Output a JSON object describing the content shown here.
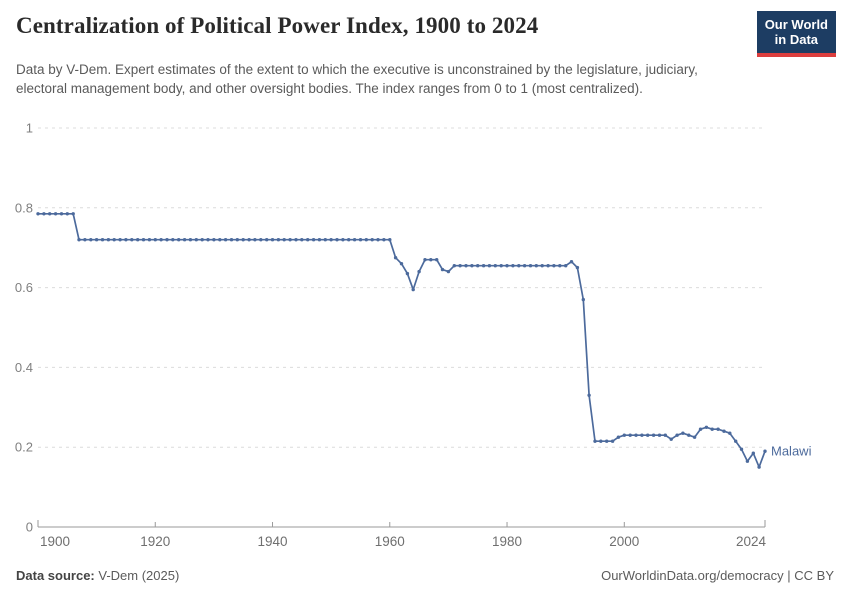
{
  "header": {
    "title": "Centralization of Political Power Index, 1900 to 2024",
    "subtitle": "Data by V-Dem. Expert estimates of the extent to which the executive is unconstrained by the legislature, judiciary, electoral management body, and other oversight bodies. The index ranges from 0 to 1 (most centralized).",
    "logo": {
      "line1": "Our World",
      "line2": "in Data",
      "bg_color": "#1d3d63",
      "accent_color": "#dc3e3e"
    }
  },
  "chart_data": {
    "type": "line",
    "title": "Centralization of Political Power Index, 1900 to 2024",
    "xlabel": "",
    "ylabel": "",
    "xlim": [
      1900,
      2024
    ],
    "ylim": [
      0,
      1
    ],
    "x_ticks": [
      1900,
      1920,
      1940,
      1960,
      1980,
      2000,
      2024
    ],
    "y_ticks": [
      0,
      0.2,
      0.4,
      0.6,
      0.8,
      1
    ],
    "grid": "horizontal-dashed",
    "legend_position": "end-of-line-label",
    "colors": {
      "grid": "#dcdcdc",
      "axis": "#9a9a9a",
      "tick_label": "#6f6f6f",
      "y_label": "#808080"
    },
    "series": [
      {
        "name": "Malawi",
        "color": "#4c6a9c",
        "points": [
          [
            1900,
            0.785
          ],
          [
            1901,
            0.785
          ],
          [
            1902,
            0.785
          ],
          [
            1903,
            0.785
          ],
          [
            1904,
            0.785
          ],
          [
            1905,
            0.785
          ],
          [
            1906,
            0.785
          ],
          [
            1907,
            0.72
          ],
          [
            1908,
            0.72
          ],
          [
            1909,
            0.72
          ],
          [
            1910,
            0.72
          ],
          [
            1911,
            0.72
          ],
          [
            1912,
            0.72
          ],
          [
            1913,
            0.72
          ],
          [
            1914,
            0.72
          ],
          [
            1915,
            0.72
          ],
          [
            1916,
            0.72
          ],
          [
            1917,
            0.72
          ],
          [
            1918,
            0.72
          ],
          [
            1919,
            0.72
          ],
          [
            1920,
            0.72
          ],
          [
            1921,
            0.72
          ],
          [
            1922,
            0.72
          ],
          [
            1923,
            0.72
          ],
          [
            1924,
            0.72
          ],
          [
            1925,
            0.72
          ],
          [
            1926,
            0.72
          ],
          [
            1927,
            0.72
          ],
          [
            1928,
            0.72
          ],
          [
            1929,
            0.72
          ],
          [
            1930,
            0.72
          ],
          [
            1931,
            0.72
          ],
          [
            1932,
            0.72
          ],
          [
            1933,
            0.72
          ],
          [
            1934,
            0.72
          ],
          [
            1935,
            0.72
          ],
          [
            1936,
            0.72
          ],
          [
            1937,
            0.72
          ],
          [
            1938,
            0.72
          ],
          [
            1939,
            0.72
          ],
          [
            1940,
            0.72
          ],
          [
            1941,
            0.72
          ],
          [
            1942,
            0.72
          ],
          [
            1943,
            0.72
          ],
          [
            1944,
            0.72
          ],
          [
            1945,
            0.72
          ],
          [
            1946,
            0.72
          ],
          [
            1947,
            0.72
          ],
          [
            1948,
            0.72
          ],
          [
            1949,
            0.72
          ],
          [
            1950,
            0.72
          ],
          [
            1951,
            0.72
          ],
          [
            1952,
            0.72
          ],
          [
            1953,
            0.72
          ],
          [
            1954,
            0.72
          ],
          [
            1955,
            0.72
          ],
          [
            1956,
            0.72
          ],
          [
            1957,
            0.72
          ],
          [
            1958,
            0.72
          ],
          [
            1959,
            0.72
          ],
          [
            1960,
            0.72
          ],
          [
            1961,
            0.675
          ],
          [
            1962,
            0.66
          ],
          [
            1963,
            0.635
          ],
          [
            1964,
            0.595
          ],
          [
            1965,
            0.64
          ],
          [
            1966,
            0.67
          ],
          [
            1967,
            0.67
          ],
          [
            1968,
            0.67
          ],
          [
            1969,
            0.645
          ],
          [
            1970,
            0.64
          ],
          [
            1971,
            0.655
          ],
          [
            1972,
            0.655
          ],
          [
            1973,
            0.655
          ],
          [
            1974,
            0.655
          ],
          [
            1975,
            0.655
          ],
          [
            1976,
            0.655
          ],
          [
            1977,
            0.655
          ],
          [
            1978,
            0.655
          ],
          [
            1979,
            0.655
          ],
          [
            1980,
            0.655
          ],
          [
            1981,
            0.655
          ],
          [
            1982,
            0.655
          ],
          [
            1983,
            0.655
          ],
          [
            1984,
            0.655
          ],
          [
            1985,
            0.655
          ],
          [
            1986,
            0.655
          ],
          [
            1987,
            0.655
          ],
          [
            1988,
            0.655
          ],
          [
            1989,
            0.655
          ],
          [
            1990,
            0.655
          ],
          [
            1991,
            0.665
          ],
          [
            1992,
            0.65
          ],
          [
            1993,
            0.57
          ],
          [
            1994,
            0.33
          ],
          [
            1995,
            0.215
          ],
          [
            1996,
            0.215
          ],
          [
            1997,
            0.215
          ],
          [
            1998,
            0.215
          ],
          [
            1999,
            0.225
          ],
          [
            2000,
            0.23
          ],
          [
            2001,
            0.23
          ],
          [
            2002,
            0.23
          ],
          [
            2003,
            0.23
          ],
          [
            2004,
            0.23
          ],
          [
            2005,
            0.23
          ],
          [
            2006,
            0.23
          ],
          [
            2007,
            0.23
          ],
          [
            2008,
            0.22
          ],
          [
            2009,
            0.23
          ],
          [
            2010,
            0.235
          ],
          [
            2011,
            0.23
          ],
          [
            2012,
            0.225
          ],
          [
            2013,
            0.245
          ],
          [
            2014,
            0.25
          ],
          [
            2015,
            0.245
          ],
          [
            2016,
            0.245
          ],
          [
            2017,
            0.24
          ],
          [
            2018,
            0.235
          ],
          [
            2019,
            0.215
          ],
          [
            2020,
            0.195
          ],
          [
            2021,
            0.165
          ],
          [
            2022,
            0.185
          ],
          [
            2023,
            0.15
          ],
          [
            2024,
            0.19
          ]
        ]
      }
    ]
  },
  "footer": {
    "source_label": "Data source:",
    "source_value": " V-Dem (2025)",
    "url": "OurWorldinData.org/democracy",
    "separator": " | ",
    "license": "CC BY"
  }
}
